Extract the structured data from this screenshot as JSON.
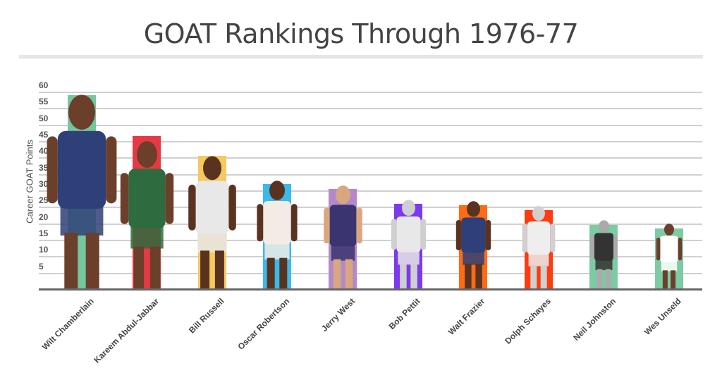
{
  "chart_data": {
    "type": "bar",
    "title": "GOAT Rankings Through 1976-77",
    "xlabel": "",
    "ylabel": "Career GOAT Points",
    "ylim": [
      0,
      60
    ],
    "yticks": [
      60,
      55,
      50,
      45,
      40,
      35,
      30,
      25,
      20,
      15,
      10,
      5
    ],
    "grid": true,
    "legend": "none",
    "categories": [
      "Wilt Chamberlain",
      "Kareem Abdul-Jabbar",
      "Bill Russell",
      "Oscar Robertson",
      "Jerry West",
      "Bob Pettit",
      "Walt Frazier",
      "Dolph Schayes",
      "Neil Johnston",
      "Wes Unseld"
    ],
    "values": [
      59,
      46.5,
      40.5,
      32,
      30.5,
      26,
      25.5,
      24,
      19.5,
      18.5
    ],
    "colors": [
      "#74c69d",
      "#e63946",
      "#f4c95d",
      "#3bb9ea",
      "#b28ac9",
      "#7c3aed",
      "#ff6a13",
      "#ff3b0f",
      "#7ccba2",
      "#7ccba2"
    ]
  },
  "header": {
    "title": "GOAT Rankings Through 1976-77"
  },
  "axis": {
    "ylabel": "Career GOAT Points"
  }
}
